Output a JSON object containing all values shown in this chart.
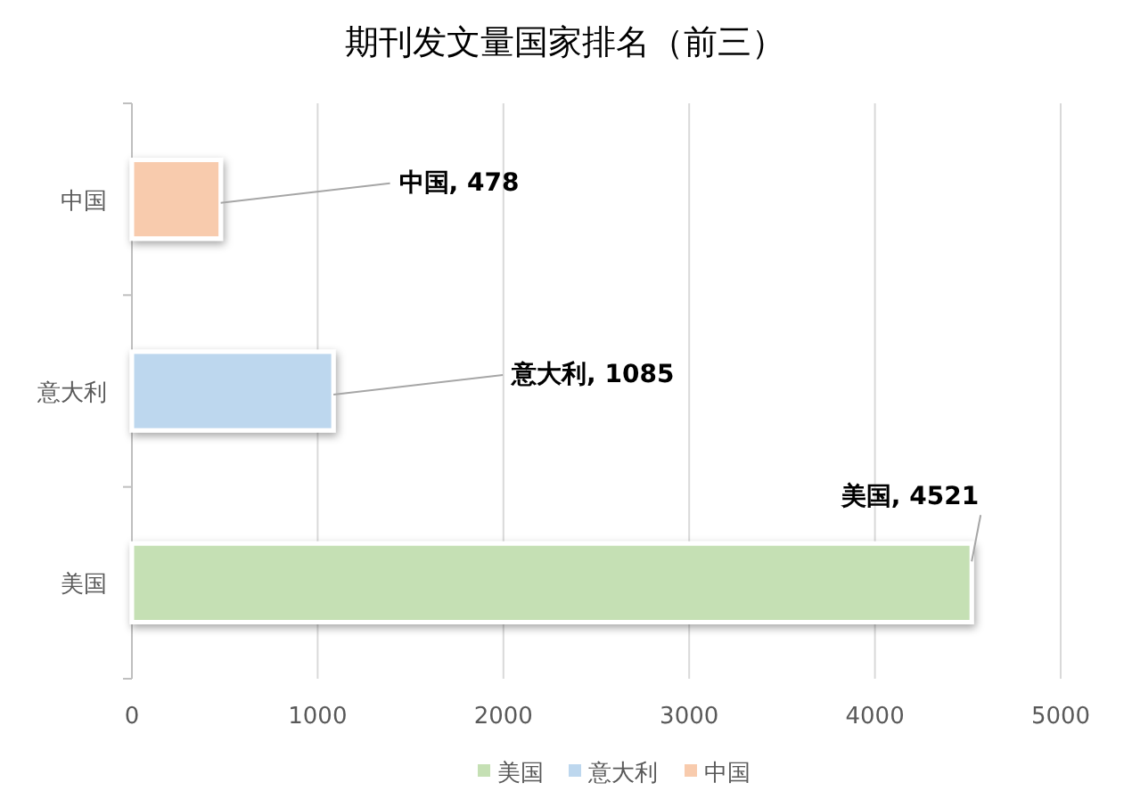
{
  "chart_data": {
    "type": "bar",
    "orientation": "horizontal",
    "title": "期刊发文量国家排名（前三）",
    "categories": [
      "中国",
      "意大利",
      "美国"
    ],
    "series": [
      {
        "name": "美国",
        "color": "#c5e0b4",
        "values": [
          null,
          null,
          4521
        ],
        "value_labels": [
          null,
          null,
          "美国, 4521"
        ]
      },
      {
        "name": "意大利",
        "color": "#bdd7ee",
        "values": [
          null,
          1085,
          null
        ],
        "value_labels": [
          null,
          "意大利, 1085",
          null
        ]
      },
      {
        "name": "中国",
        "color": "#f8cbad",
        "values": [
          478,
          null,
          null
        ],
        "value_labels": [
          "中国, 478",
          null,
          null
        ]
      }
    ],
    "xlim": [
      0,
      5000
    ],
    "xticks": [
      0,
      1000,
      2000,
      3000,
      4000,
      5000
    ],
    "grid": "x",
    "legend": "bottom"
  }
}
